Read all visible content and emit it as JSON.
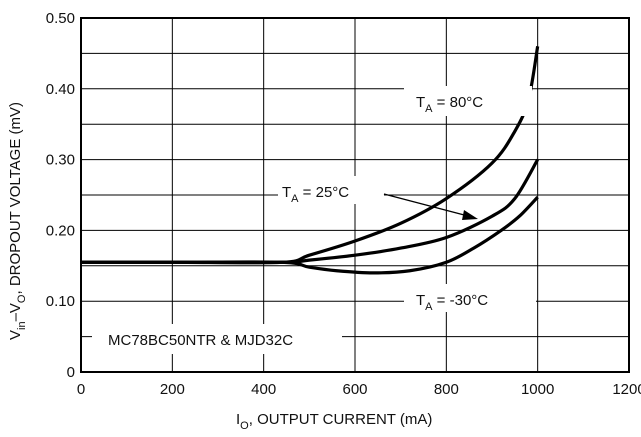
{
  "chart_data": {
    "type": "line",
    "xlabel": {
      "main": "I",
      "sub": "O",
      "rest": ", OUTPUT CURRENT (mA)"
    },
    "ylabel": {
      "V": "V",
      "sub1": "in",
      "mid": "–V",
      "sub2": "O",
      "rest": ", DROPOUT VOLTAGE (mV)"
    },
    "xlim": [
      0,
      1200
    ],
    "ylim": [
      0,
      0.5
    ],
    "x_ticks": [
      "0",
      "200",
      "400",
      "600",
      "800",
      "1000",
      "1200"
    ],
    "y_ticks": [
      "0",
      "0.10",
      "0.20",
      "0.30",
      "0.40",
      "0.50"
    ],
    "x_grid": [
      0,
      200,
      400,
      600,
      800,
      1000,
      1200
    ],
    "y_grid": [
      0,
      0.05,
      0.1,
      0.15,
      0.2,
      0.25,
      0.3,
      0.35,
      0.4,
      0.45,
      0.5
    ],
    "grid": true,
    "annotation": "MC78BC50NTR & MJD32C",
    "series": [
      {
        "name": "T_A = 80°C",
        "label": {
          "T": "T",
          "sub": "A",
          "rest": " = 80°C"
        },
        "x": [
          0,
          200,
          440,
          500,
          600,
          700,
          800,
          900,
          950,
          980,
          1000
        ],
        "y": [
          0.155,
          0.155,
          0.155,
          0.165,
          0.185,
          0.21,
          0.245,
          0.295,
          0.34,
          0.385,
          0.46
        ]
      },
      {
        "name": "T_A = 25°C",
        "label": {
          "T": "T",
          "sub": "A",
          "rest": " = 25°C"
        },
        "x": [
          0,
          200,
          440,
          500,
          600,
          700,
          800,
          900,
          950,
          1000
        ],
        "y": [
          0.155,
          0.155,
          0.155,
          0.158,
          0.165,
          0.175,
          0.19,
          0.22,
          0.245,
          0.3
        ]
      },
      {
        "name": "T_A = -30°C",
        "label": {
          "T": "T",
          "sub": "A",
          "rest": " = -30°C"
        },
        "x": [
          0,
          200,
          440,
          500,
          560,
          640,
          720,
          800,
          860,
          920,
          960,
          1000
        ],
        "y": [
          0.155,
          0.155,
          0.155,
          0.148,
          0.143,
          0.14,
          0.143,
          0.155,
          0.175,
          0.2,
          0.22,
          0.247
        ]
      }
    ]
  }
}
